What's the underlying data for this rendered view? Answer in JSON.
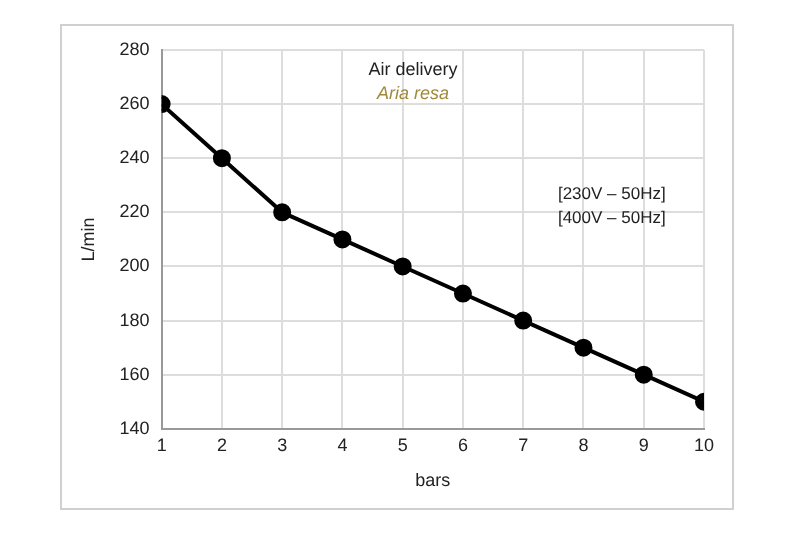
{
  "chart_data": {
    "type": "line",
    "title": "Air delivery",
    "subtitle": "Aria resa",
    "xlabel": "bars",
    "ylabel": "L/min",
    "x": [
      1,
      2,
      3,
      4,
      5,
      6,
      7,
      8,
      9,
      10
    ],
    "series": [
      {
        "color": "#000000",
        "values": [
          260,
          240,
          220,
          210,
          200,
          190,
          180,
          170,
          160,
          150
        ]
      }
    ],
    "xlim": [
      1,
      10
    ],
    "xticks": [
      1,
      2,
      3,
      4,
      5,
      6,
      7,
      8,
      9,
      10
    ],
    "ylim": [
      140,
      280
    ],
    "yticks": [
      140,
      160,
      180,
      200,
      220,
      240,
      260,
      280
    ],
    "grid": true,
    "legend": false,
    "marker": "circle",
    "line_style": "solid",
    "annotations": [
      "[230V – 50Hz]",
      "[400V – 50Hz]"
    ]
  }
}
